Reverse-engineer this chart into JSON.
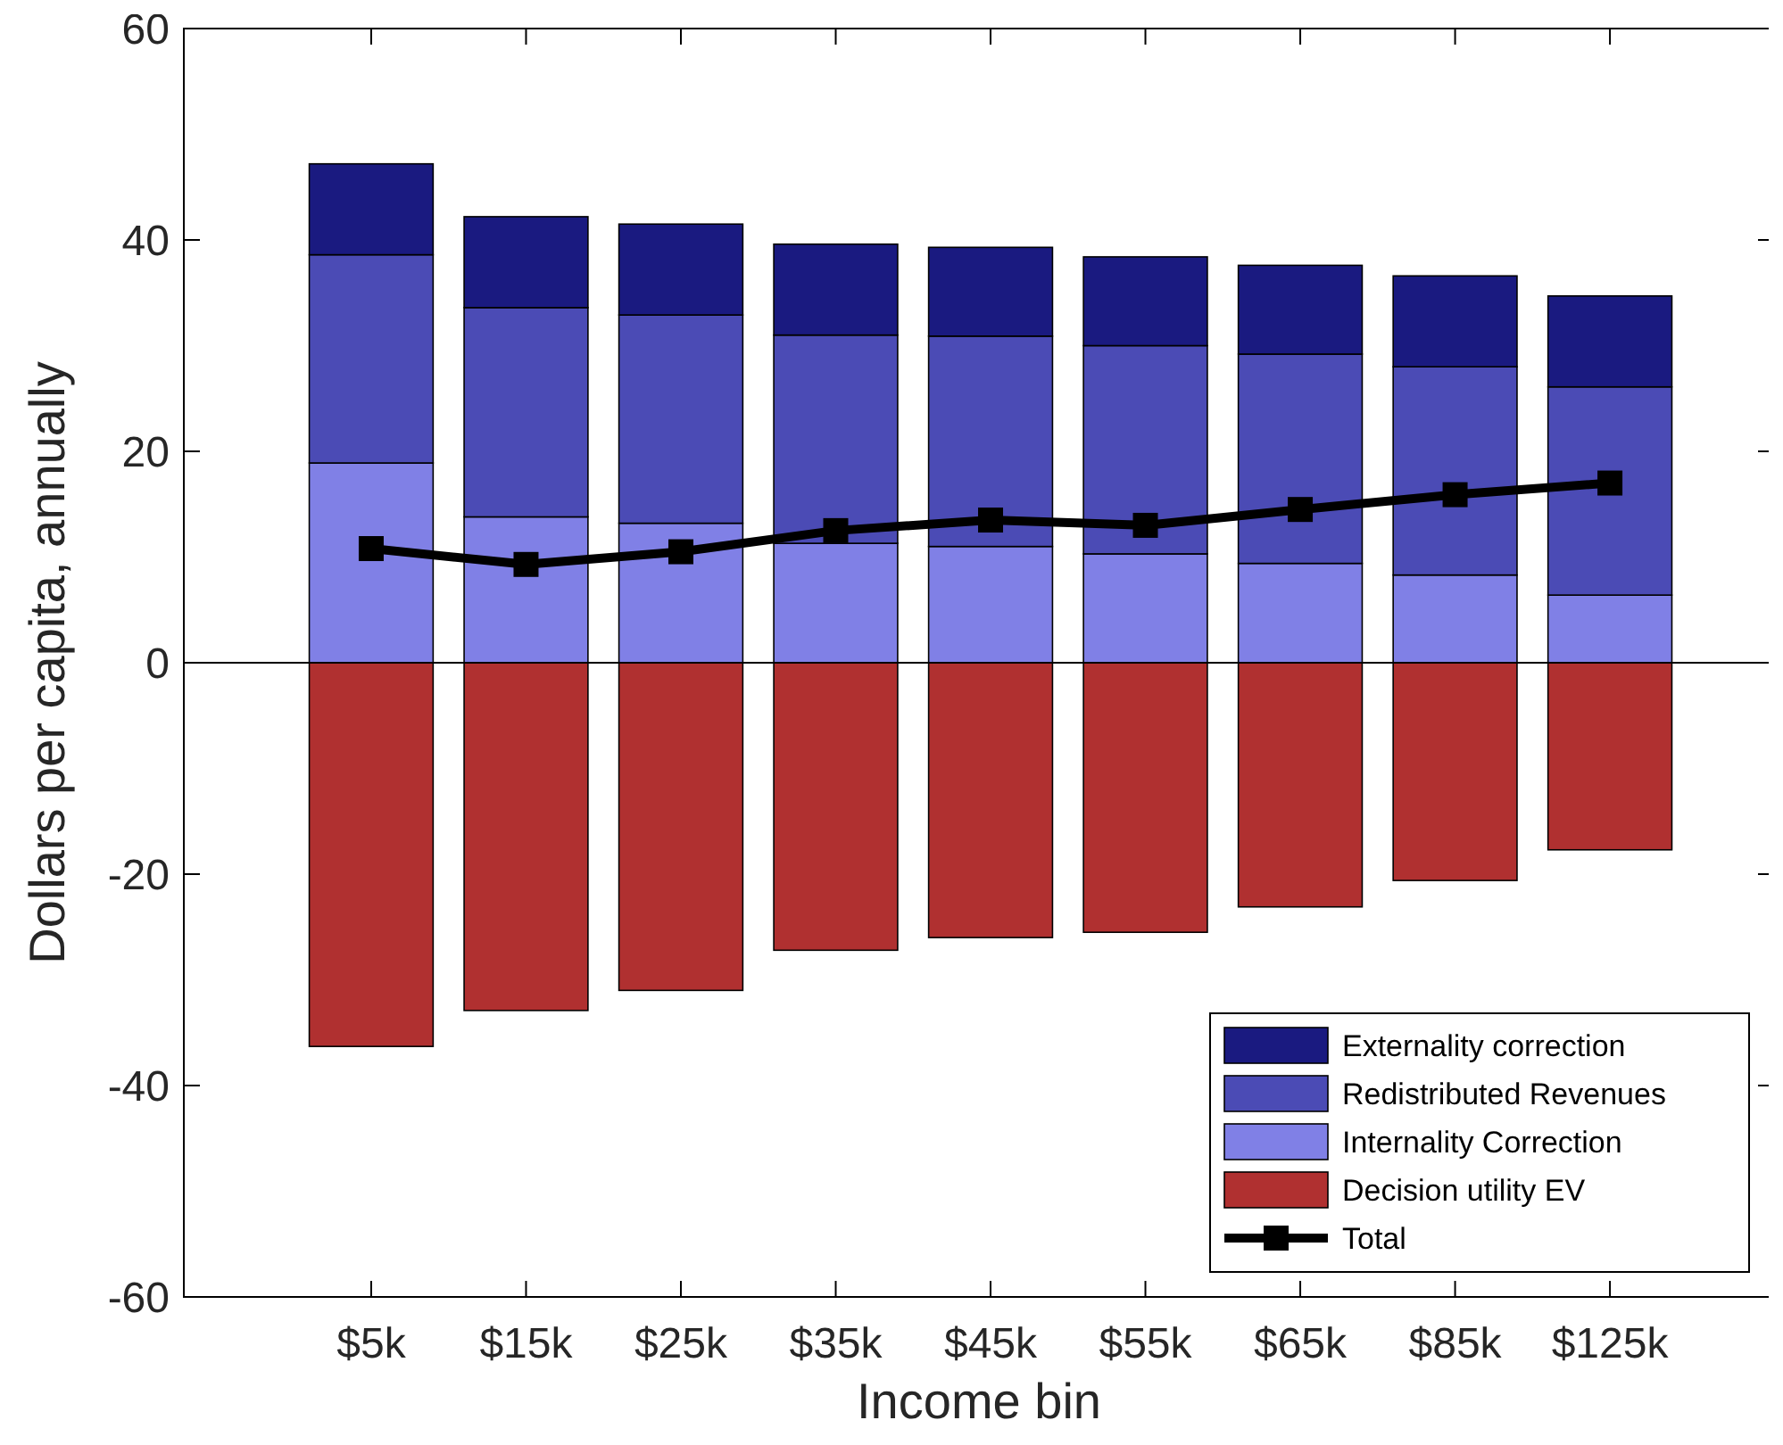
{
  "chart_data": {
    "type": "bar",
    "stacked": true,
    "xlabel": "Income bin",
    "ylabel": "Dollars per capita, annually",
    "categories": [
      "$5k",
      "$15k",
      "$25k",
      "$35k",
      "$45k",
      "$55k",
      "$65k",
      "$85k",
      "$125k"
    ],
    "series": [
      {
        "name": "Decision utility EV",
        "color": "#b03030",
        "values": [
          -36.3,
          -32.9,
          -31.0,
          -27.2,
          -26.0,
          -25.5,
          -23.1,
          -20.6,
          -17.7
        ]
      },
      {
        "name": "Internality Correction",
        "color": "#8080e6",
        "values": [
          18.9,
          13.8,
          13.2,
          11.3,
          11.0,
          10.3,
          9.4,
          8.3,
          6.4
        ]
      },
      {
        "name": "Redistributed Revenues",
        "color": "#4b4bb5",
        "values": [
          19.7,
          19.8,
          19.7,
          19.7,
          19.9,
          19.7,
          19.8,
          19.7,
          19.7
        ]
      },
      {
        "name": "Externality correction",
        "color": "#1a1a80",
        "values": [
          8.6,
          8.6,
          8.6,
          8.6,
          8.4,
          8.4,
          8.4,
          8.6,
          8.6
        ]
      },
      {
        "name": "Total",
        "type": "line",
        "color": "#000000",
        "marker": "square",
        "values": [
          10.8,
          9.3,
          10.5,
          12.5,
          13.5,
          13.0,
          14.5,
          15.9,
          17.0
        ]
      }
    ],
    "ylim": [
      -60,
      60
    ],
    "yticks": [
      -60,
      -40,
      -20,
      0,
      20,
      40,
      60
    ],
    "ref_lines": [
      {
        "axis": "y",
        "value": 0,
        "color": "#000000"
      }
    ],
    "legend": "bottom right"
  }
}
